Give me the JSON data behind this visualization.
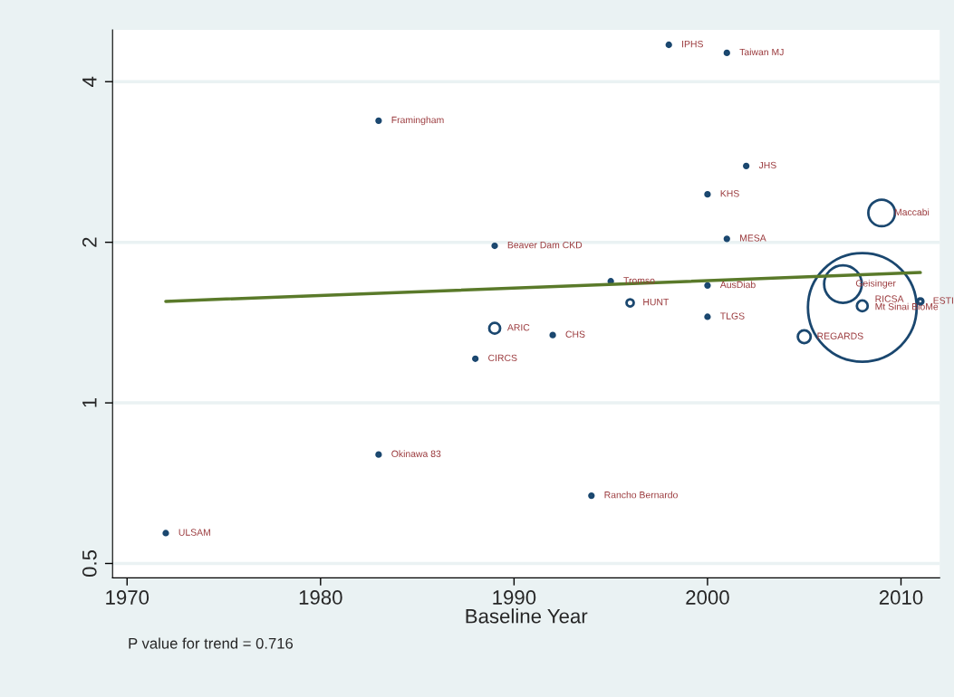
{
  "chart_data": {
    "type": "bubble",
    "xlabel": "Baseline Year",
    "log": "y",
    "grid": "y",
    "legend": false,
    "xlim": [
      1969.25,
      2012
    ],
    "xticks": [
      1970,
      1980,
      1990,
      2000,
      2010
    ],
    "ylim": [
      0.47,
      5
    ],
    "yticks": [
      0.5,
      1,
      2,
      4
    ],
    "series": [
      {
        "color": "#1a476f",
        "x": [
          1972,
          1983,
          1983,
          1989,
          1988,
          1989,
          1992,
          1995,
          1996,
          1994,
          1998,
          2001,
          2002,
          2000,
          2001,
          2000,
          2000,
          2009,
          2007,
          2008,
          2008,
          2005,
          2011
        ],
        "values": [
          0.57,
          0.8,
          3.38,
          1.97,
          1.21,
          1.38,
          1.34,
          1.69,
          1.54,
          0.67,
          4.69,
          4.53,
          2.78,
          2.46,
          2.03,
          1.66,
          1.45,
          2.27,
          1.67,
          1.51,
          1.52,
          1.33,
          1.55
        ],
        "sizes": [
          0.001,
          0.001,
          0.001,
          0.001,
          0.001,
          0.01,
          0.001,
          0.001,
          0.0044,
          0.001,
          0.001,
          0.001,
          0.001,
          0.001,
          0.001,
          0.001,
          0.001,
          0.06,
          0.12,
          1,
          0.01,
          0.014,
          0.0025
        ]
      },
      {
        "type": "line",
        "color": "#5a7a2a",
        "x": [
          1972,
          2011
        ],
        "values": [
          1.55,
          1.755
        ]
      }
    ],
    "annotations": [
      {
        "text": "ULSAM",
        "x": 1972,
        "y": 0.57
      },
      {
        "text": "Okinawa 83",
        "x": 1983,
        "y": 0.8
      },
      {
        "text": "Framingham",
        "x": 1983,
        "y": 3.38
      },
      {
        "text": "Beaver Dam CKD",
        "x": 1989,
        "y": 1.97
      },
      {
        "text": "CIRCS",
        "x": 1988,
        "y": 1.21
      },
      {
        "text": "ARIC",
        "x": 1989,
        "y": 1.38
      },
      {
        "text": "CHS",
        "x": 1992,
        "y": 1.34
      },
      {
        "text": "Tromso",
        "x": 1995,
        "y": 1.69
      },
      {
        "text": "HUNT",
        "x": 1996,
        "y": 1.54
      },
      {
        "text": "Rancho Bernardo",
        "x": 1994,
        "y": 0.67
      },
      {
        "text": "IPHS",
        "x": 1998,
        "y": 4.69
      },
      {
        "text": "Taiwan MJ",
        "x": 2001,
        "y": 4.53
      },
      {
        "text": "JHS",
        "x": 2002,
        "y": 2.78
      },
      {
        "text": "KHS",
        "x": 2000,
        "y": 2.46
      },
      {
        "text": "MESA",
        "x": 2001,
        "y": 2.03
      },
      {
        "text": "AusDiab",
        "x": 2000,
        "y": 1.66
      },
      {
        "text": "TLGS",
        "x": 2000,
        "y": 1.45
      },
      {
        "text": "Maccabi",
        "x": 2009,
        "y": 2.27
      },
      {
        "text": "Geisinger",
        "x": 2007,
        "y": 1.67
      },
      {
        "text": "Mt Sinai BioMe",
        "x": 2008,
        "y": 1.51
      },
      {
        "text": "RICSA",
        "x": 2008,
        "y": 1.52
      },
      {
        "text": "REGARDS",
        "x": 2005,
        "y": 1.33
      },
      {
        "text": "ESTI",
        "x": 2011,
        "y": 1.55
      },
      "P value for trend = 0.716"
    ]
  }
}
